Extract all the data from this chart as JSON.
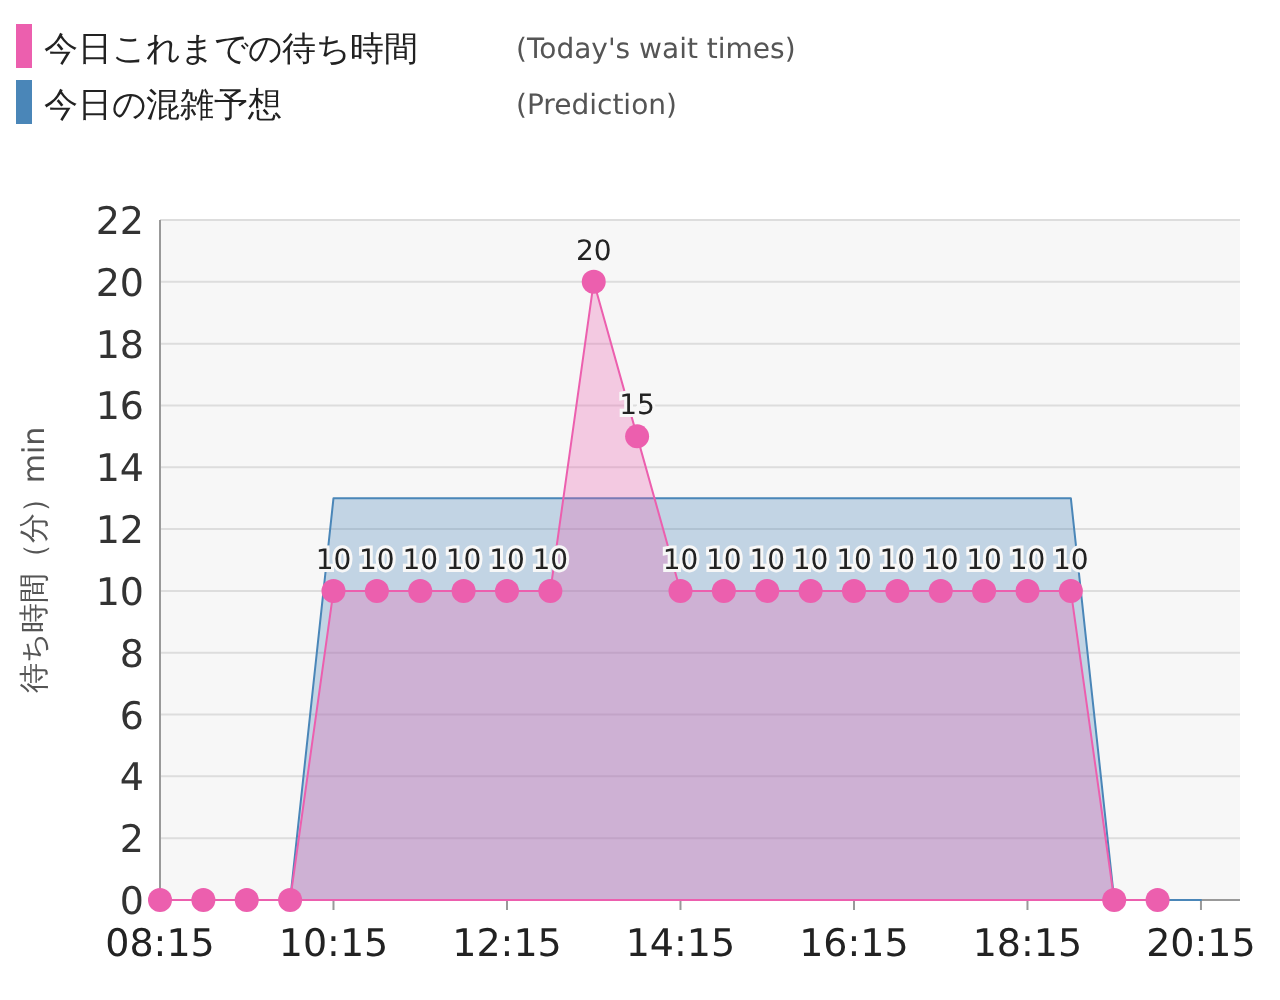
{
  "chart_data": {
    "type": "area",
    "ylabel": "待ち時間（分）min",
    "x": [
      8.25,
      8.75,
      9.25,
      9.75,
      10.25,
      10.75,
      11.25,
      11.75,
      12.25,
      12.75,
      13.25,
      13.75,
      14.25,
      14.75,
      15.25,
      15.75,
      16.25,
      16.75,
      17.25,
      17.75,
      18.25,
      18.75,
      19.25,
      19.75,
      20.25
    ],
    "series": [
      {
        "name": "今日の混雑予想",
        "color": "#4a86b8",
        "marker": "none",
        "values": [
          0,
          0,
          0,
          0,
          13,
          13,
          13,
          13,
          13,
          13,
          13,
          13,
          13,
          13,
          13,
          13,
          13,
          13,
          13,
          13,
          13,
          13,
          0,
          0,
          0
        ]
      },
      {
        "name": "今日これまでの待ち時間",
        "color": "#ec5fae",
        "marker": "circle",
        "values": [
          0,
          0,
          0,
          0,
          10,
          10,
          10,
          10,
          10,
          10,
          20,
          15,
          10,
          10,
          10,
          10,
          10,
          10,
          10,
          10,
          10,
          10,
          0,
          0,
          null
        ],
        "value_labels": [
          null,
          null,
          null,
          null,
          "10",
          "10",
          "10",
          "10",
          "10",
          "10",
          "20",
          "15",
          "10",
          "10",
          "10",
          "10",
          "10",
          "10",
          "10",
          "10",
          "10",
          "10",
          null,
          null,
          null
        ]
      }
    ],
    "xlim": [
      8.25,
      20.7
    ],
    "xticks": [
      {
        "value": 8.25,
        "label": "08:15"
      },
      {
        "value": 10.25,
        "label": "10:15"
      },
      {
        "value": 12.25,
        "label": "12:15"
      },
      {
        "value": 14.25,
        "label": "14:15"
      },
      {
        "value": 16.25,
        "label": "16:15"
      },
      {
        "value": 18.25,
        "label": "18:15"
      },
      {
        "value": 20.25,
        "label": "20:15"
      }
    ],
    "ylim": [
      0,
      22
    ],
    "yticks": [
      0,
      2,
      4,
      6,
      8,
      10,
      12,
      14,
      16,
      18,
      20,
      22
    ],
    "grid": "y",
    "annotations": [
      "(Prediction)",
      "(Today's wait times)"
    ],
    "legend": "top left"
  }
}
